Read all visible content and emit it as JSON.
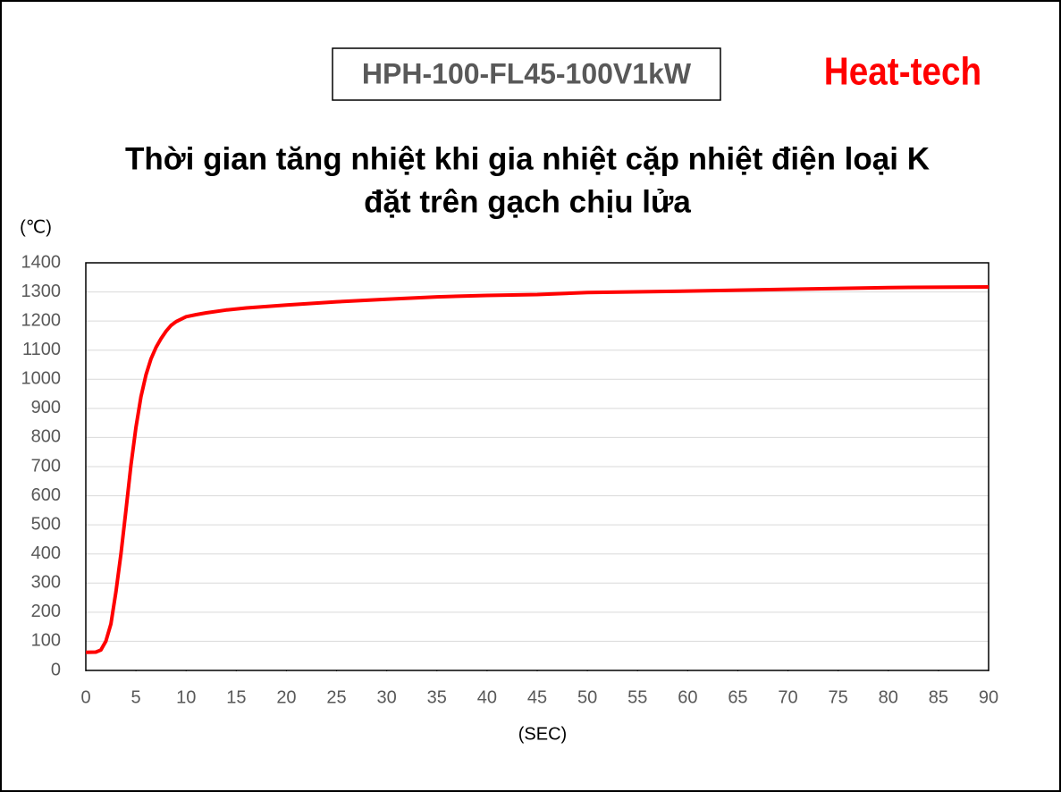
{
  "chart_data": {
    "type": "line",
    "model": "HPH-100-FL45-100V1kW",
    "brand": "Heat-tech",
    "title": [
      "Thời gian tăng nhiệt khi gia nhiệt cặp nhiệt điện loại K",
      "đặt trên gạch chịu lửa"
    ],
    "y_label": "(℃)",
    "x_label": "(SEC)",
    "x": [
      0,
      1,
      1.5,
      2,
      2.5,
      3,
      3.5,
      4,
      4.5,
      5,
      5.5,
      6,
      6.5,
      7,
      7.5,
      8,
      8.5,
      9,
      10,
      11,
      12,
      14,
      16,
      20,
      25,
      30,
      35,
      40,
      45,
      50,
      60,
      70,
      80,
      90
    ],
    "values": [
      62,
      63,
      70,
      100,
      160,
      270,
      400,
      550,
      705,
      835,
      940,
      1015,
      1070,
      1110,
      1140,
      1165,
      1185,
      1198,
      1215,
      1222,
      1228,
      1238,
      1245,
      1255,
      1266,
      1275,
      1283,
      1288,
      1291,
      1298,
      1303,
      1309,
      1315,
      1317
    ],
    "color": "#ff0000",
    "xlim": [
      0,
      90
    ],
    "xticks": [
      0,
      5,
      10,
      15,
      20,
      25,
      30,
      35,
      40,
      45,
      50,
      55,
      60,
      65,
      70,
      75,
      80,
      85,
      90
    ],
    "ylim": [
      0,
      1400
    ],
    "yticks": [
      0,
      100,
      200,
      300,
      400,
      500,
      600,
      700,
      800,
      900,
      1000,
      1100,
      1200,
      1300,
      1400
    ],
    "grid": true
  }
}
